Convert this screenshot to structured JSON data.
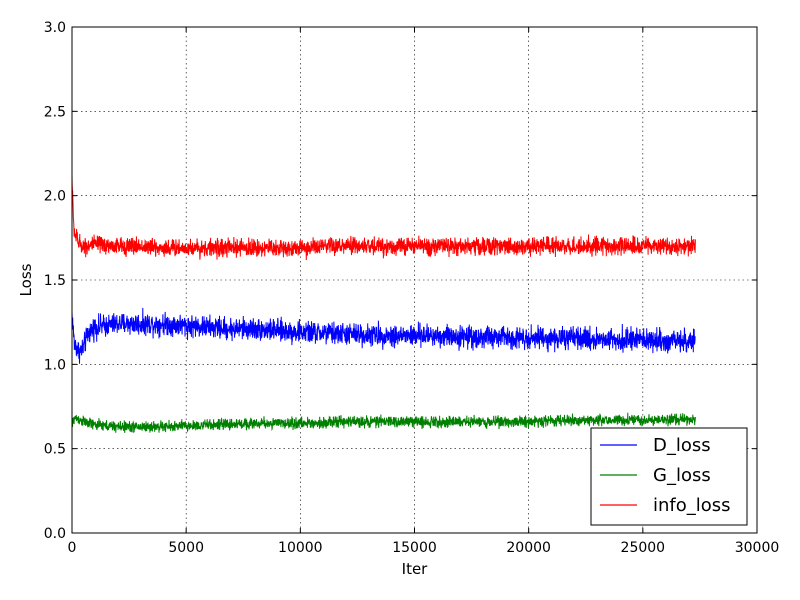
{
  "chart_data": {
    "type": "line",
    "xlabel": "Iter",
    "ylabel": "Loss",
    "xlim": [
      0,
      30000
    ],
    "ylim": [
      0,
      3.0
    ],
    "xticks": [
      0,
      5000,
      10000,
      15000,
      20000,
      25000,
      30000
    ],
    "xtick_labels": [
      "0",
      "5000",
      "10000",
      "15000",
      "20000",
      "25000",
      "30000"
    ],
    "yticks": [
      0.0,
      0.5,
      1.0,
      1.5,
      2.0,
      2.5,
      3.0
    ],
    "ytick_labels": [
      "0.0",
      "0.5",
      "1.0",
      "1.5",
      "2.0",
      "2.5",
      "3.0"
    ],
    "grid": true,
    "legend_position": "lower-right",
    "series": [
      {
        "name": "D_loss",
        "color": "#0000ff",
        "x": [
          0,
          100,
          200,
          300,
          400,
          500,
          700,
          1000,
          1500,
          2000,
          3000,
          4000,
          5000,
          6000,
          7000,
          8000,
          9000,
          10000,
          12000,
          14000,
          16000,
          18000,
          20000,
          22000,
          24000,
          26000,
          27300
        ],
        "y": [
          1.3,
          1.12,
          1.1,
          1.08,
          1.08,
          1.1,
          1.18,
          1.22,
          1.23,
          1.24,
          1.24,
          1.24,
          1.23,
          1.22,
          1.21,
          1.21,
          1.2,
          1.19,
          1.18,
          1.17,
          1.17,
          1.16,
          1.16,
          1.15,
          1.15,
          1.14,
          1.14
        ],
        "noise": 0.05
      },
      {
        "name": "G_loss",
        "color": "#008000",
        "x": [
          0,
          100,
          200,
          500,
          1000,
          2000,
          4000,
          6000,
          8000,
          10000,
          12000,
          14000,
          16000,
          18000,
          20000,
          22000,
          24000,
          26000,
          27300
        ],
        "y": [
          0.64,
          0.68,
          0.68,
          0.66,
          0.64,
          0.63,
          0.63,
          0.64,
          0.65,
          0.65,
          0.66,
          0.66,
          0.66,
          0.66,
          0.66,
          0.67,
          0.67,
          0.67,
          0.67
        ],
        "noise": 0.025
      },
      {
        "name": "info_loss",
        "color": "#ff0000",
        "x": [
          0,
          30,
          60,
          100,
          150,
          200,
          300,
          500,
          1000,
          2000,
          3000,
          4000,
          5000,
          6000,
          8000,
          10000,
          12000,
          14000,
          16000,
          18000,
          20000,
          22000,
          24000,
          26000,
          27300
        ],
        "y": [
          2.12,
          2.0,
          1.85,
          1.8,
          1.76,
          1.75,
          1.72,
          1.7,
          1.71,
          1.7,
          1.7,
          1.69,
          1.69,
          1.69,
          1.69,
          1.69,
          1.7,
          1.7,
          1.7,
          1.7,
          1.7,
          1.7,
          1.7,
          1.7,
          1.7
        ],
        "noise": 0.04
      }
    ]
  }
}
